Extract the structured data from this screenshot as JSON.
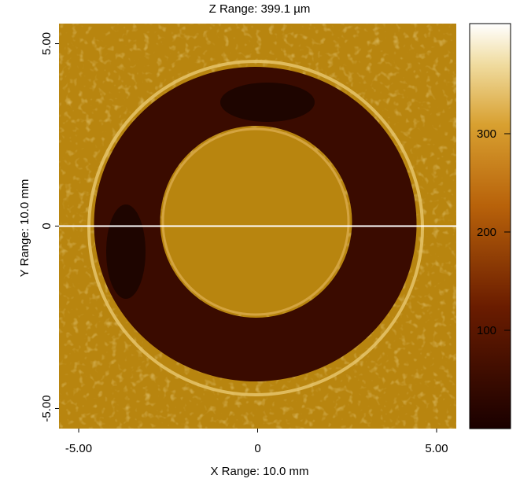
{
  "chart_data": {
    "type": "image",
    "title": "Z Range: 399.1 µm",
    "xlabel": "X Range: 10.0 mm",
    "ylabel": "Y Range: 10.0 mm",
    "xlim": [
      -5.55,
      5.55
    ],
    "xticks": [
      {
        "value": -5,
        "label": "-5.00"
      },
      0,
      {
        "value": 5,
        "label": "5.00"
      }
    ],
    "ylim": [
      -5.55,
      5.55
    ],
    "yticks": [
      {
        "value": -5,
        "label": "-5.00"
      },
      0,
      {
        "value": 5,
        "label": "5.00"
      }
    ],
    "zlim": [
      0,
      412
    ],
    "zticks": [
      100,
      200,
      300
    ]
  }
}
